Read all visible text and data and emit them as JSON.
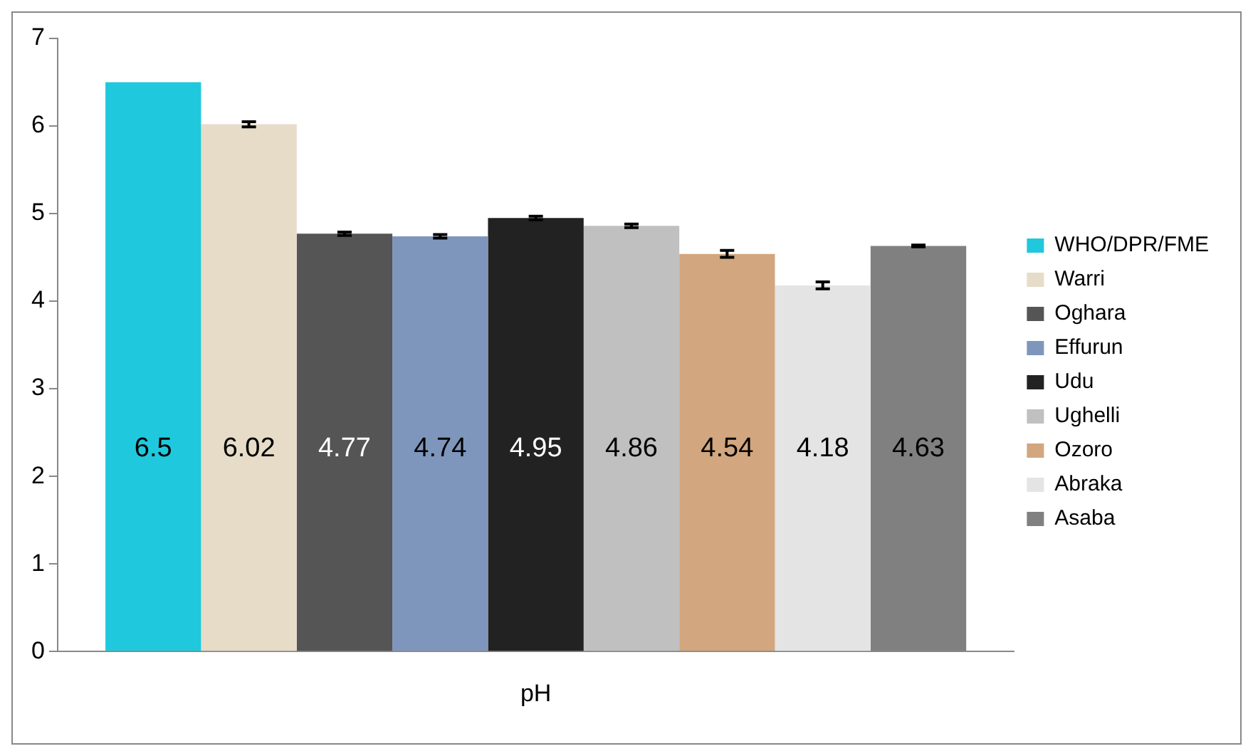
{
  "chart_data": {
    "type": "bar",
    "categories": [
      "pH"
    ],
    "series": [
      {
        "name": "WHO/DPR/FME",
        "color": "#1fc8dc",
        "values": [
          6.5
        ],
        "errors": [
          null
        ]
      },
      {
        "name": "Warri",
        "color": "#e6dcc8",
        "values": [
          6.02
        ],
        "errors": [
          0.03
        ]
      },
      {
        "name": "Oghara",
        "color": "#555555",
        "values": [
          4.77
        ],
        "errors": [
          0.02
        ]
      },
      {
        "name": "Effurun",
        "color": "#7f96bc",
        "values": [
          4.74
        ],
        "errors": [
          0.02
        ]
      },
      {
        "name": "Udu",
        "color": "#222222",
        "values": [
          4.95
        ],
        "errors": [
          0.02
        ]
      },
      {
        "name": "Ughelli",
        "color": "#c0c0c0",
        "values": [
          4.86
        ],
        "errors": [
          0.02
        ]
      },
      {
        "name": "Ozoro",
        "color": "#d2a67e",
        "values": [
          4.54
        ],
        "errors": [
          0.04
        ]
      },
      {
        "name": "Abraka",
        "color": "#e4e4e4",
        "values": [
          4.18
        ],
        "errors": [
          0.04
        ]
      },
      {
        "name": "Asaba",
        "color": "#808080",
        "values": [
          4.63
        ],
        "errors": [
          0.01
        ]
      }
    ],
    "ylim": [
      0,
      7
    ],
    "yticks": [
      0,
      1,
      2,
      3,
      4,
      5,
      6,
      7
    ],
    "grid": false,
    "legend": "right",
    "data_labels": true
  }
}
